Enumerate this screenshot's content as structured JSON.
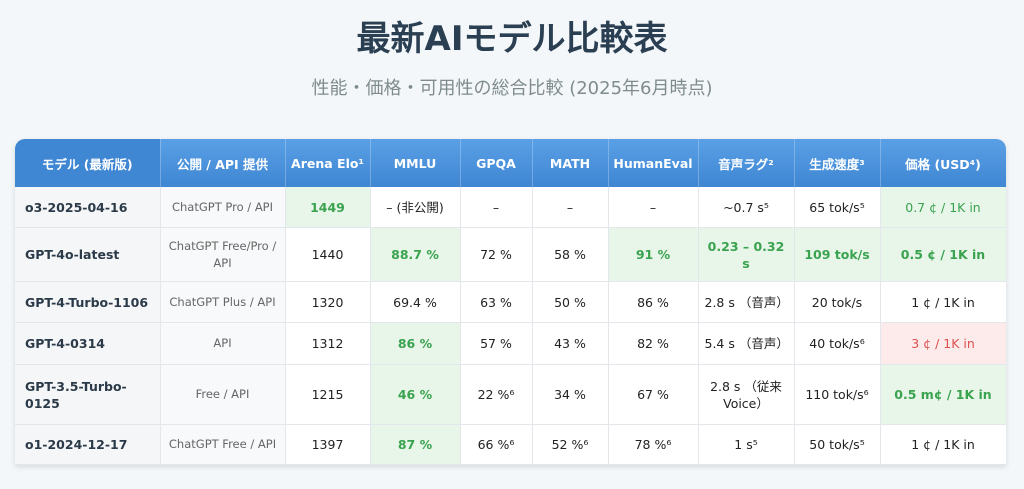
{
  "page": {
    "title": "最新AIモデル比較表",
    "subtitle": "性能・価格・可用性の総合比較 (2025年6月時点)"
  },
  "table": {
    "headers": [
      "モデル (最新版)",
      "公開 / API 提供",
      "Arena Elo¹",
      "MMLU",
      "GPQA",
      "MATH",
      "HumanEval",
      "音声ラグ²",
      "生成速度³",
      "価格 (USD⁴)"
    ],
    "rows": [
      [
        "o3-2025-04-16",
        "ChatGPT Pro / API",
        "1449",
        "– (非公開)",
        "–",
        "–",
        "–",
        "~0.7 s⁵",
        "65 tok/s⁵",
        "0.7 ¢ / 1K in"
      ],
      [
        "GPT-4o-latest",
        "ChatGPT Free/Pro / API",
        "1440",
        "88.7 %",
        "72 %",
        "58 %",
        "91 %",
        "0.23 – 0.32 s",
        "109 tok/s",
        "0.5 ¢ / 1K in"
      ],
      [
        "GPT-4-Turbo-1106",
        "ChatGPT Plus / API",
        "1320",
        "69.4 %",
        "63 %",
        "50 %",
        "86 %",
        "2.8 s （音声）",
        "20 tok/s",
        "1 ¢ / 1K in"
      ],
      [
        "GPT-4-0314",
        "API",
        "1312",
        "86 %",
        "57 %",
        "43 %",
        "82 %",
        "5.4 s （音声）",
        "40 tok/s⁶",
        "3 ¢ / 1K in"
      ],
      [
        "GPT-3.5-Turbo-0125",
        "Free / API",
        "1215",
        "46 %",
        "22 %⁶",
        "34 %",
        "67 %",
        "2.8 s （従来Voice）",
        "110 tok/s⁶",
        "0.5 m¢ / 1K in"
      ],
      [
        "o1-2024-12-17",
        "ChatGPT Free / API",
        "1397",
        "87 %",
        "66 %⁶",
        "52 %⁶",
        "78 %⁶",
        "1 s⁵",
        "50 tok/s⁵",
        "1 ¢ / 1K in"
      ]
    ]
  },
  "colors": {
    "header_blue": "#4a90d9",
    "highlight_green_bg": "#e8f5e9",
    "highlight_green_text": "#3aa34f",
    "highlight_red_bg": "#fdeaea",
    "highlight_red_text": "#e05050",
    "title_color": "#2b3f52"
  }
}
